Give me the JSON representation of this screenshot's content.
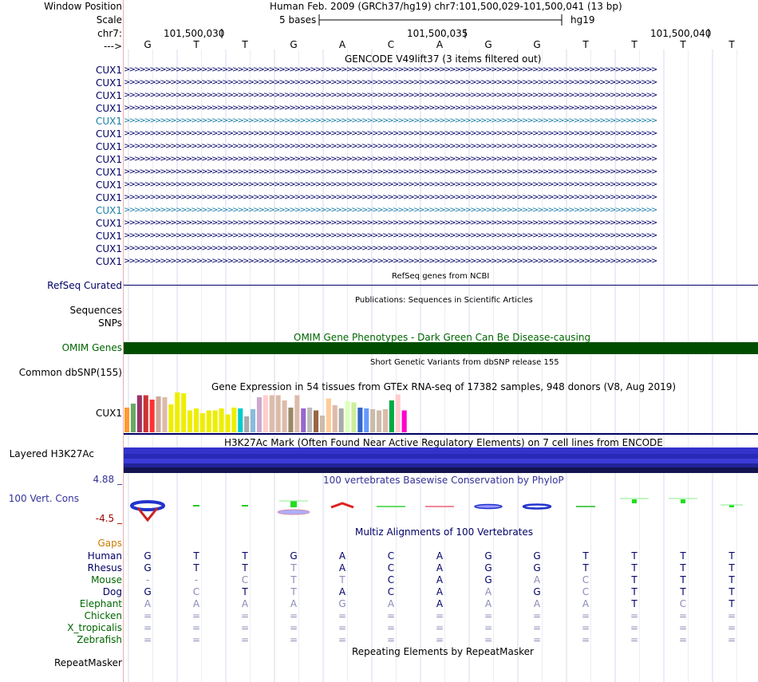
{
  "header": {
    "window_position_label": "Window Position",
    "scale_label": "Scale",
    "chr_label": "chr7:",
    "strand_label": "--->",
    "assembly_position": "Human Feb. 2009 (GRCh37/hg19)   chr7:101,500,029-101,500,041 (13 bp)",
    "scale_text": "5 bases",
    "scale_db": "hg19",
    "coord_labels": [
      "101,500,030",
      "101,500,035",
      "101,500,040"
    ]
  },
  "bases": [
    "G",
    "T",
    "T",
    "G",
    "A",
    "C",
    "A",
    "G",
    "G",
    "T",
    "T",
    "T",
    "T"
  ],
  "gencode": {
    "title": "GENCODE V49lift37 (3 items filtered out)",
    "rows": [
      {
        "label": "CUX1",
        "highlight": false
      },
      {
        "label": "CUX1",
        "highlight": false
      },
      {
        "label": "CUX1",
        "highlight": false
      },
      {
        "label": "CUX1",
        "highlight": false
      },
      {
        "label": "CUX1",
        "highlight": true
      },
      {
        "label": "CUX1",
        "highlight": false
      },
      {
        "label": "CUX1",
        "highlight": false
      },
      {
        "label": "CUX1",
        "highlight": false
      },
      {
        "label": "CUX1",
        "highlight": false
      },
      {
        "label": "CUX1",
        "highlight": false
      },
      {
        "label": "CUX1",
        "highlight": false
      },
      {
        "label": "CUX1",
        "highlight": true
      },
      {
        "label": "CUX1",
        "highlight": false
      },
      {
        "label": "CUX1",
        "highlight": false
      },
      {
        "label": "CUX1",
        "highlight": false
      },
      {
        "label": "CUX1",
        "highlight": false
      }
    ],
    "arrows": ">>>>>>>>>>>>>>>>>>>>>>>>>>>>>>>>>>>>>>>>>>>>>>>>>>>>>>>>>>>>>>>>>>>>>>>>>>>>>>>>>>>>>>>>>>>>>>>>>>>>>>>"
  },
  "refseq": {
    "title": "RefSeq genes from NCBI",
    "label": "RefSeq Curated"
  },
  "publications": {
    "title": "Publications: Sequences in Scientific Articles",
    "label_a": "Sequences",
    "label_b": "SNPs"
  },
  "omim": {
    "title": "OMIM Gene Phenotypes - Dark Green Can Be Disease-causing",
    "label": "OMIM Genes",
    "color": "#004d00"
  },
  "dbsnp": {
    "title": "Short Genetic Variants from dbSNP release 155",
    "label": "Common dbSNP(155)"
  },
  "gtex": {
    "title": "Gene Expression in 54 tissues from GTEx RNA-seq of 17382 samples, 948 donors (V8, Aug 2019)",
    "label": "CUX1",
    "bars": [
      {
        "v": 0.62,
        "c": "#ff9933"
      },
      {
        "v": 0.72,
        "c": "#66aa66"
      },
      {
        "v": 0.93,
        "c": "#993366"
      },
      {
        "v": 0.93,
        "c": "#cc3333"
      },
      {
        "v": 0.82,
        "c": "#ff3333"
      },
      {
        "v": 0.9,
        "c": "#ccaa99"
      },
      {
        "v": 0.88,
        "c": "#ddbbaa"
      },
      {
        "v": 0.7,
        "c": "#eeee00"
      },
      {
        "v": 1.0,
        "c": "#eeee00"
      },
      {
        "v": 0.98,
        "c": "#eeee00"
      },
      {
        "v": 0.55,
        "c": "#eeee00"
      },
      {
        "v": 0.6,
        "c": "#eeee00"
      },
      {
        "v": 0.48,
        "c": "#eeee00"
      },
      {
        "v": 0.55,
        "c": "#eeee00"
      },
      {
        "v": 0.55,
        "c": "#eeee00"
      },
      {
        "v": 0.6,
        "c": "#eeee00"
      },
      {
        "v": 0.45,
        "c": "#eeee00"
      },
      {
        "v": 0.62,
        "c": "#eeee00"
      },
      {
        "v": 0.6,
        "c": "#00cccc"
      },
      {
        "v": 0.4,
        "c": "#aaaaaa"
      },
      {
        "v": 0.58,
        "c": "#88bbdd"
      },
      {
        "v": 0.88,
        "c": "#ccaacc"
      },
      {
        "v": 0.93,
        "c": "#ffcccc"
      },
      {
        "v": 0.93,
        "c": "#ddbbaa"
      },
      {
        "v": 0.93,
        "c": "#ddbbaa"
      },
      {
        "v": 0.8,
        "c": "#ddbbaa"
      },
      {
        "v": 0.62,
        "c": "#998866"
      },
      {
        "v": 0.93,
        "c": "#ddbbaa"
      },
      {
        "v": 0.6,
        "c": "#9966cc"
      },
      {
        "v": 0.62,
        "c": "#bbbbbb"
      },
      {
        "v": 0.55,
        "c": "#996644"
      },
      {
        "v": 0.42,
        "c": "#ccbbaa"
      },
      {
        "v": 0.85,
        "c": "#ffcc99"
      },
      {
        "v": 0.68,
        "c": "#ddbbaa"
      },
      {
        "v": 0.6,
        "c": "#aaaaaa"
      },
      {
        "v": 0.78,
        "c": "#ddffbb"
      },
      {
        "v": 0.75,
        "c": "#ccee99"
      },
      {
        "v": 0.62,
        "c": "#3366cc"
      },
      {
        "v": 0.6,
        "c": "#6699ff"
      },
      {
        "v": 0.58,
        "c": "#ccbbaa"
      },
      {
        "v": 0.55,
        "c": "#ccbbaa"
      },
      {
        "v": 0.58,
        "c": "#ddbbaa"
      },
      {
        "v": 0.8,
        "c": "#00aa44"
      },
      {
        "v": 0.95,
        "c": "#ffcccc"
      },
      {
        "v": 0.55,
        "c": "#ff00cc"
      }
    ]
  },
  "h3k27ac": {
    "title": "H3K27Ac Mark (Often Found Near Active Regulatory Elements) on 7 cell lines from ENCODE",
    "label": "Layered H3K27Ac"
  },
  "phylop": {
    "title": "100 vertebrates Basewise Conservation by PhyloP",
    "label": "100 Vert. Cons",
    "max_label": "4.88 _",
    "min_label": "-4.5 _"
  },
  "multiz": {
    "title": "Multiz Alignments of 100 Vertebrates",
    "gaps_label": "Gaps",
    "species": [
      {
        "name": "Human",
        "cls": "navy",
        "seq": [
          "G",
          "T",
          "T",
          "G",
          "A",
          "C",
          "A",
          "G",
          "G",
          "T",
          "T",
          "T",
          "T"
        ],
        "faint": [
          0,
          0,
          0,
          0,
          0,
          0,
          0,
          0,
          0,
          0,
          0,
          0,
          0
        ]
      },
      {
        "name": "Rhesus",
        "cls": "navy",
        "seq": [
          "G",
          "T",
          "T",
          "T",
          "A",
          "C",
          "A",
          "G",
          "G",
          "T",
          "T",
          "T",
          "T"
        ],
        "faint": [
          0,
          0,
          0,
          1,
          0,
          0,
          0,
          0,
          0,
          0,
          0,
          0,
          0
        ]
      },
      {
        "name": "Mouse",
        "cls": "dgreen",
        "seq": [
          "-",
          "-",
          "C",
          "T",
          "T",
          "C",
          "A",
          "G",
          "A",
          "C",
          "T",
          "T",
          "T"
        ],
        "faint": [
          1,
          1,
          1,
          1,
          1,
          0,
          0,
          0,
          1,
          1,
          0,
          0,
          0
        ]
      },
      {
        "name": "Dog",
        "cls": "navy",
        "seq": [
          "G",
          "C",
          "T",
          "T",
          "A",
          "C",
          "A",
          "A",
          "G",
          "C",
          "T",
          "T",
          "T"
        ],
        "faint": [
          0,
          1,
          0,
          1,
          0,
          0,
          0,
          1,
          0,
          1,
          0,
          0,
          0
        ]
      },
      {
        "name": "Elephant",
        "cls": "dgreen",
        "seq": [
          "A",
          "A",
          "A",
          "A",
          "G",
          "A",
          "A",
          "A",
          "A",
          "A",
          "T",
          "C",
          "T"
        ],
        "faint": [
          1,
          1,
          1,
          1,
          1,
          1,
          0,
          1,
          1,
          1,
          0,
          1,
          0
        ]
      },
      {
        "name": "Chicken",
        "cls": "dgreen",
        "seq": [
          "=",
          "=",
          "=",
          "=",
          "=",
          "=",
          "=",
          "=",
          "=",
          "=",
          "=",
          "=",
          "="
        ],
        "faint": [
          1,
          1,
          1,
          1,
          1,
          1,
          1,
          1,
          1,
          1,
          1,
          1,
          1
        ]
      },
      {
        "name": "X_tropicalis",
        "cls": "dgreen",
        "seq": [
          "=",
          "=",
          "=",
          "=",
          "=",
          "=",
          "=",
          "=",
          "=",
          "=",
          "=",
          "=",
          "="
        ],
        "faint": [
          1,
          1,
          1,
          1,
          1,
          1,
          1,
          1,
          1,
          1,
          1,
          1,
          1
        ]
      },
      {
        "name": "Zebrafish",
        "cls": "dgreen",
        "seq": [
          "=",
          "=",
          "=",
          "=",
          "=",
          "=",
          "=",
          "=",
          "=",
          "=",
          "=",
          "=",
          "="
        ],
        "faint": [
          1,
          1,
          1,
          1,
          1,
          1,
          1,
          1,
          1,
          1,
          1,
          1,
          1
        ]
      }
    ]
  },
  "repeatmasker": {
    "title": "Repeating Elements by RepeatMasker",
    "label": "RepeatMasker"
  }
}
